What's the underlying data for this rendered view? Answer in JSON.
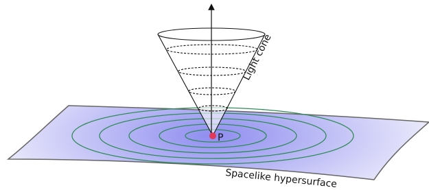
{
  "labels": {
    "cone": "Light cone",
    "point": "P",
    "surface": "Spacelike hypersurface"
  }
}
